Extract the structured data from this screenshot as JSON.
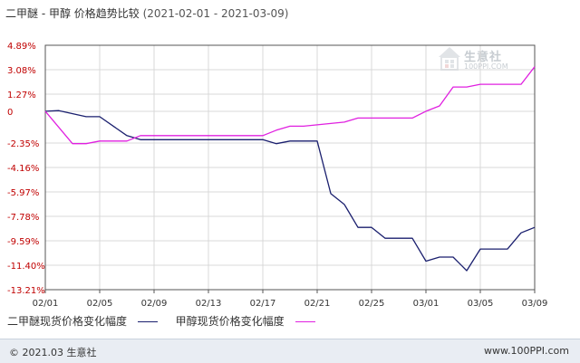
{
  "title": {
    "main": "二甲醚 - 甲醇 价格趋势比较",
    "range": "(2021-02-01 - 2021-03-09)"
  },
  "watermark": {
    "name": "生意社",
    "url": "100PPI.COM"
  },
  "footer": {
    "left": "© 2021.03 生意社",
    "right": "www.100PPI.com"
  },
  "colors": {
    "dme": "#1a1f6e",
    "methanol": "#e020e0",
    "grid": "#d8d8d8",
    "axis": "#555555",
    "ticklabel": "#c00000"
  },
  "chart_data": {
    "type": "line",
    "title": "二甲醚 - 甲醇 价格趋势比较",
    "y_ticks": [
      "4.89%",
      "3.08%",
      "1.27%",
      "0",
      "-2.35%",
      "-4.16%",
      "-5.97%",
      "-7.78%",
      "-9.59%",
      "-11.40%",
      "-13.21%"
    ],
    "y_tick_values": [
      4.89,
      3.08,
      1.27,
      0,
      -2.35,
      -4.16,
      -5.97,
      -7.78,
      -9.59,
      -11.4,
      -13.21
    ],
    "ylim": [
      -13.21,
      4.89
    ],
    "x_ticks": [
      "02/01",
      "02/05",
      "02/09",
      "02/13",
      "02/17",
      "02/21",
      "02/25",
      "03/01",
      "03/05",
      "03/09"
    ],
    "x_tick_days": [
      0,
      4,
      8,
      12,
      16,
      20,
      24,
      28,
      32,
      36
    ],
    "xlim": [
      0,
      36
    ],
    "grid": true,
    "legend_position": "bottom",
    "series": [
      {
        "name": "二甲醚现货价格变化幅度",
        "key": "dme",
        "x": [
          0,
          1,
          3,
          4,
          6,
          7,
          16,
          17,
          18,
          20,
          21,
          22,
          23,
          24,
          25,
          27,
          28,
          29,
          30,
          31,
          32,
          33,
          34,
          35,
          36
        ],
        "y": [
          0,
          0.05,
          -0.4,
          -0.4,
          -1.8,
          -2.1,
          -2.1,
          -2.4,
          -2.2,
          -2.2,
          -6.1,
          -6.9,
          -8.6,
          -8.6,
          -9.4,
          -9.4,
          -11.1,
          -10.8,
          -10.8,
          -11.8,
          -10.2,
          -10.2,
          -10.2,
          -9.0,
          -8.6
        ]
      },
      {
        "name": "甲醇现货价格变化幅度",
        "key": "methanol",
        "x": [
          0,
          2,
          3,
          4,
          6,
          7,
          16,
          17,
          18,
          19,
          20,
          21,
          22,
          23,
          24,
          27,
          28,
          29,
          30,
          31,
          32,
          33,
          34,
          35,
          36
        ],
        "y": [
          0,
          -2.4,
          -2.4,
          -2.2,
          -2.2,
          -1.8,
          -1.8,
          -1.4,
          -1.1,
          -1.1,
          -1.0,
          -0.9,
          -0.8,
          -0.5,
          -0.5,
          -0.5,
          0,
          0.4,
          1.8,
          1.8,
          2.0,
          2.0,
          2.0,
          2.0,
          3.3
        ]
      }
    ]
  }
}
